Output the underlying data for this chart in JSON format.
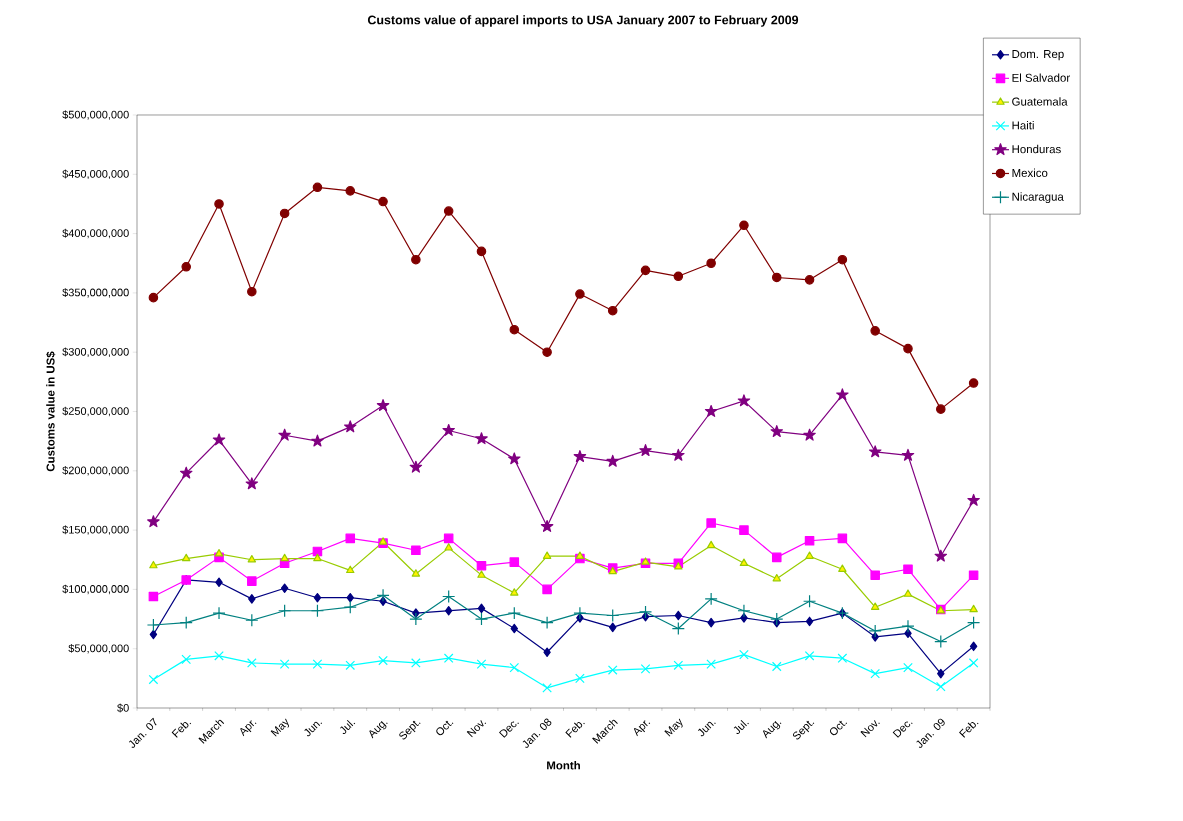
{
  "chart_data": {
    "type": "line",
    "title": "Customs value of apparel imports to USA January 2007 to February 2009",
    "xlabel": "Month",
    "ylabel": "Customs value in US$",
    "categories": [
      "Jan. 07",
      "Feb.",
      "March",
      "Apr.",
      "May",
      "Jun.",
      "Jul.",
      "Aug.",
      "Sept.",
      "Oct.",
      "Nov.",
      "Dec.",
      "Jan. 08",
      "Feb.",
      "March",
      "Apr.",
      "May",
      "Jun.",
      "Jul.",
      "Aug.",
      "Sept.",
      "Oct.",
      "Nov.",
      "Dec.",
      "Jan. 09",
      "Feb."
    ],
    "ylim": [
      0,
      500000000
    ],
    "yticks": [
      {
        "value": 0,
        "label": "$0"
      },
      {
        "value": 50000000,
        "label": "$50,000,000"
      },
      {
        "value": 100000000,
        "label": "$100,000,000"
      },
      {
        "value": 150000000,
        "label": "$150,000,000"
      },
      {
        "value": 200000000,
        "label": "$200,000,000"
      },
      {
        "value": 250000000,
        "label": "$250,000,000"
      },
      {
        "value": 300000000,
        "label": "$300,000,000"
      },
      {
        "value": 350000000,
        "label": "$350,000,000"
      },
      {
        "value": 400000000,
        "label": "$400,000,000"
      },
      {
        "value": 450000000,
        "label": "$450,000,000"
      },
      {
        "value": 500000000,
        "label": "$500,000,000"
      }
    ],
    "grid": false,
    "legend": "top right",
    "line_style": "solid",
    "series": [
      {
        "name": "Dom. Rep",
        "color": "#000080",
        "marker": "diamond",
        "values": [
          62000000,
          108000000,
          106000000,
          92000000,
          101000000,
          93000000,
          93000000,
          90000000,
          80000000,
          82000000,
          84000000,
          67000000,
          47000000,
          76000000,
          68000000,
          77000000,
          78000000,
          72000000,
          76000000,
          72000000,
          73000000,
          80000000,
          60000000,
          63000000,
          29000000,
          52000000
        ]
      },
      {
        "name": "El Salvador",
        "color": "#ff00ff",
        "marker": "square",
        "values": [
          94000000,
          108000000,
          127000000,
          107000000,
          122000000,
          132000000,
          143000000,
          139000000,
          133000000,
          143000000,
          120000000,
          123000000,
          100000000,
          126000000,
          118000000,
          122000000,
          122000000,
          156000000,
          150000000,
          127000000,
          141000000,
          143000000,
          112000000,
          117000000,
          83000000,
          112000000
        ]
      },
      {
        "name": "Guatemala",
        "color": "#99cc00",
        "marker": "triangle",
        "values": [
          120000000,
          126000000,
          130000000,
          125000000,
          126000000,
          126000000,
          116000000,
          140000000,
          113000000,
          135000000,
          112000000,
          97000000,
          128000000,
          128000000,
          115000000,
          123000000,
          119000000,
          137000000,
          122000000,
          109000000,
          128000000,
          117000000,
          85000000,
          96000000,
          82000000,
          83000000
        ]
      },
      {
        "name": "Haiti",
        "color": "#00ffff",
        "marker": "cross",
        "values": [
          24000000,
          41000000,
          44000000,
          38000000,
          37000000,
          37000000,
          36000000,
          40000000,
          38000000,
          42000000,
          37000000,
          34000000,
          17000000,
          25000000,
          32000000,
          33000000,
          36000000,
          37000000,
          45000000,
          35000000,
          44000000,
          42000000,
          29000000,
          34000000,
          18000000,
          38000000
        ]
      },
      {
        "name": "Honduras",
        "color": "#800080",
        "marker": "star",
        "values": [
          157000000,
          198000000,
          226000000,
          189000000,
          230000000,
          225000000,
          237000000,
          255000000,
          203000000,
          234000000,
          227000000,
          210000000,
          153000000,
          212000000,
          208000000,
          217000000,
          213000000,
          250000000,
          259000000,
          233000000,
          230000000,
          264000000,
          216000000,
          213000000,
          128000000,
          175000000
        ]
      },
      {
        "name": "Mexico",
        "color": "#800000",
        "marker": "circle",
        "values": [
          346000000,
          372000000,
          425000000,
          351000000,
          417000000,
          439000000,
          436000000,
          427000000,
          378000000,
          419000000,
          385000000,
          319000000,
          300000000,
          349000000,
          335000000,
          369000000,
          364000000,
          375000000,
          407000000,
          363000000,
          361000000,
          378000000,
          318000000,
          303000000,
          252000000,
          274000000
        ]
      },
      {
        "name": "Nicaragua",
        "color": "#008080",
        "marker": "plus",
        "values": [
          70000000,
          72000000,
          80000000,
          74000000,
          82000000,
          82000000,
          85000000,
          95000000,
          75000000,
          94000000,
          75000000,
          80000000,
          72000000,
          80000000,
          78000000,
          81000000,
          67000000,
          92000000,
          82000000,
          75000000,
          90000000,
          80000000,
          65000000,
          69000000,
          56000000,
          72000000
        ]
      }
    ]
  }
}
